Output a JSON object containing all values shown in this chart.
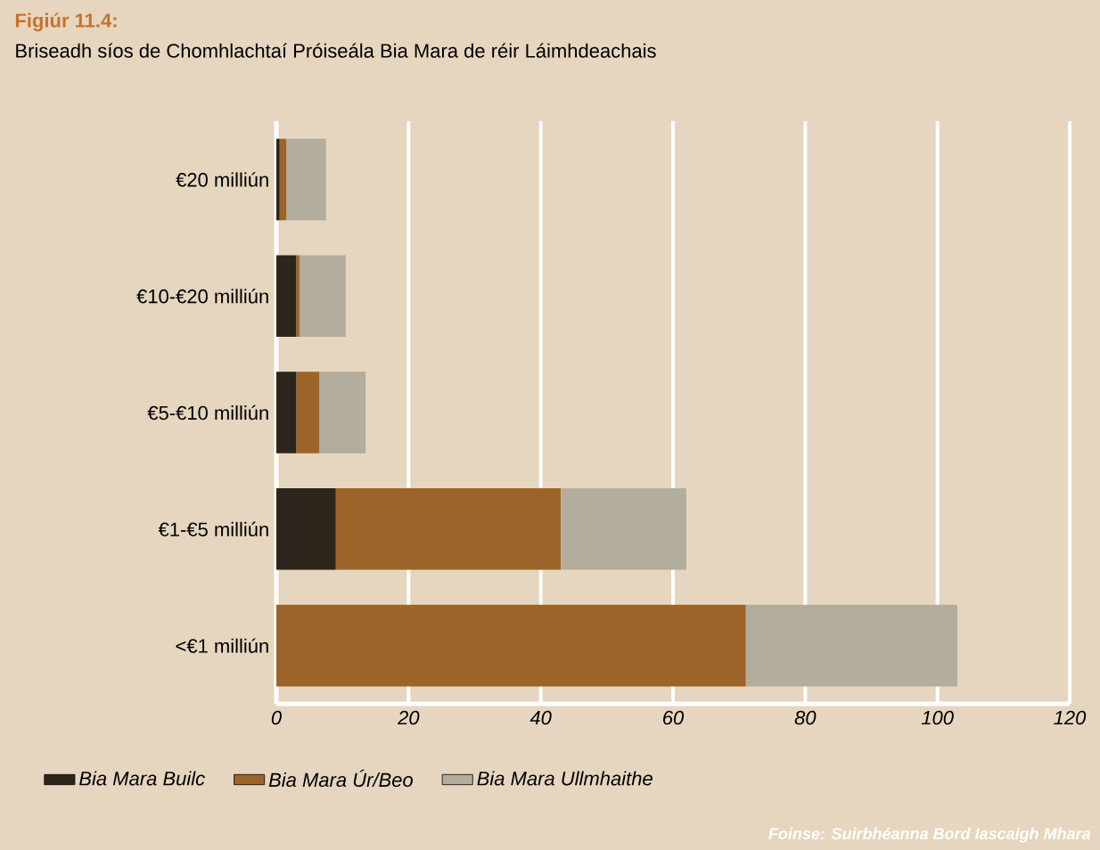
{
  "chart_data": {
    "type": "bar",
    "orientation": "horizontal",
    "stacked": true,
    "title": "Figiúr 11.4:",
    "subtitle": "Briseadh síos de Chomhlachtaí Próiseála Bia Mara de réir Láimhdeachais",
    "categories": [
      "€20 milliún",
      "€10-€20 milliún",
      "€5-€10 milliún",
      "€1-€5 milliún",
      "<€1 milliún"
    ],
    "series": [
      {
        "name": "Bia Mara Builc",
        "color": "#2c251c",
        "values": [
          0.5,
          3,
          3,
          9,
          0
        ]
      },
      {
        "name": "Bia Mara Úr/Beo",
        "color": "#9c6429",
        "values": [
          1,
          0.5,
          3.5,
          34,
          71
        ]
      },
      {
        "name": "Bia Mara Ullmhaithe",
        "color": "#b3ad9d",
        "values": [
          6,
          7,
          7,
          19,
          32
        ]
      }
    ],
    "xlim": [
      0,
      120
    ],
    "xticks": [
      0,
      20,
      40,
      60,
      80,
      100,
      120
    ],
    "grid": "x",
    "legend": "bottom",
    "annotations": [
      "Foinse: Suirbhéanna Bord Iascaigh Mhara"
    ]
  }
}
